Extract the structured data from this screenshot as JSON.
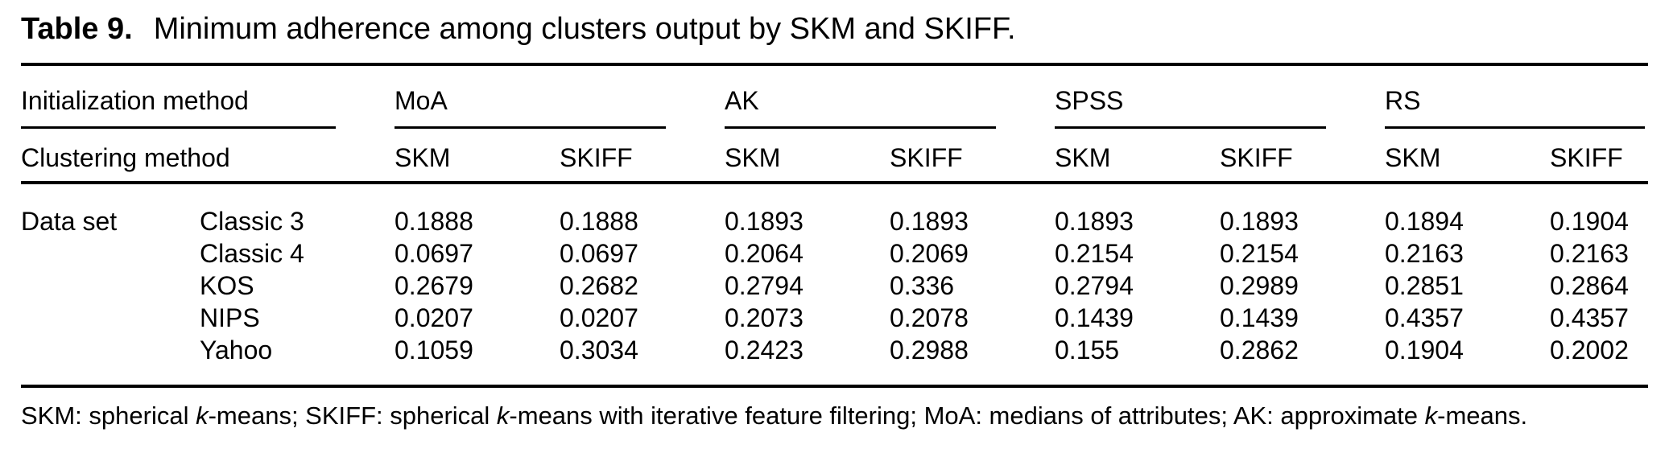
{
  "title": {
    "label": "Table 9.",
    "text": "Minimum adherence among clusters output by SKM and SKIFF."
  },
  "table": {
    "header": {
      "row1_label": "Initialization method",
      "row2_label": "Clustering method",
      "groups": [
        {
          "name": "MoA",
          "subcols": [
            "SKM",
            "SKIFF"
          ]
        },
        {
          "name": "AK",
          "subcols": [
            "SKM",
            "SKIFF"
          ]
        },
        {
          "name": "SPSS",
          "subcols": [
            "SKM",
            "SKIFF"
          ]
        },
        {
          "name": "RS",
          "subcols": [
            "SKM",
            "SKIFF"
          ]
        }
      ]
    },
    "row_group_label": "Data set",
    "rows": [
      {
        "dataset": "Classic 3",
        "values": [
          "0.1888",
          "0.1888",
          "0.1893",
          "0.1893",
          "0.1893",
          "0.1893",
          "0.1894",
          "0.1904"
        ]
      },
      {
        "dataset": "Classic 4",
        "values": [
          "0.0697",
          "0.0697",
          "0.2064",
          "0.2069",
          "0.2154",
          "0.2154",
          "0.2163",
          "0.2163"
        ]
      },
      {
        "dataset": "KOS",
        "values": [
          "0.2679",
          "0.2682",
          "0.2794",
          "0.336",
          "0.2794",
          "0.2989",
          "0.2851",
          "0.2864"
        ]
      },
      {
        "dataset": "NIPS",
        "values": [
          "0.0207",
          "0.0207",
          "0.2073",
          "0.2078",
          "0.1439",
          "0.1439",
          "0.4357",
          "0.4357"
        ]
      },
      {
        "dataset": "Yahoo",
        "values": [
          "0.1059",
          "0.3034",
          "0.2423",
          "0.2988",
          "0.155",
          "0.2862",
          "0.1904",
          "0.2002"
        ]
      }
    ]
  },
  "footnote": {
    "segments": [
      {
        "text": "SKM: spherical "
      },
      {
        "text": "k",
        "italic": true
      },
      {
        "text": "-means; SKIFF: spherical "
      },
      {
        "text": "k",
        "italic": true
      },
      {
        "text": "-means with iterative feature filtering; MoA: medians of attributes; AK: approximate "
      },
      {
        "text": "k",
        "italic": true
      },
      {
        "text": "-means."
      }
    ]
  },
  "colors": {
    "text": "#000000",
    "background": "#ffffff",
    "rule": "#000000"
  }
}
